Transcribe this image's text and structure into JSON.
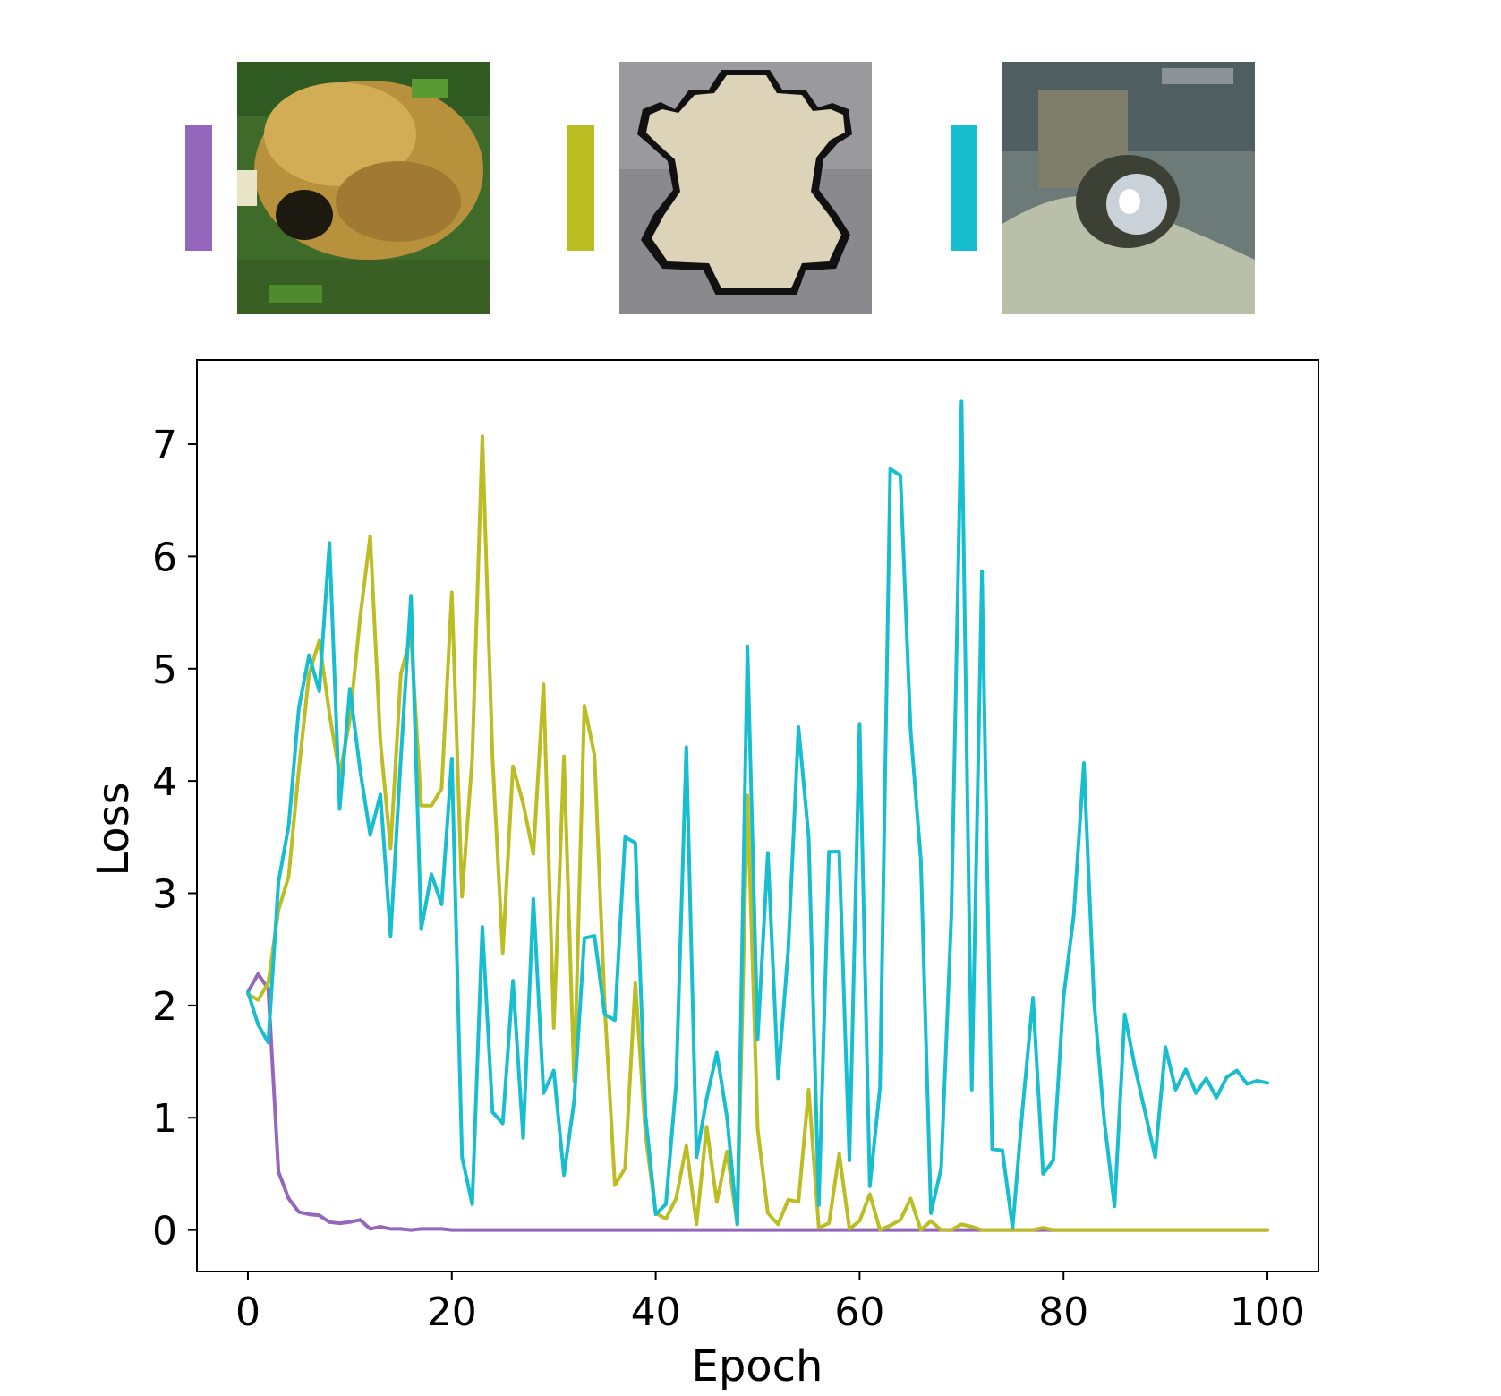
{
  "chart_data": {
    "type": "line",
    "xlabel": "Epoch",
    "ylabel": "Loss",
    "xlim": [
      -5,
      105
    ],
    "ylim": [
      -0.37,
      7.75
    ],
    "xticks": [
      0,
      20,
      40,
      60,
      80,
      100
    ],
    "yticks": [
      0,
      1,
      2,
      3,
      4,
      5,
      6,
      7
    ],
    "grid": false,
    "legend": "none",
    "thumbnails": [
      {
        "color": "#9467bd",
        "image": "frog-on-grass-thumbnail"
      },
      {
        "color": "#bcbd22",
        "image": "frog-silhouette-thumbnail"
      },
      {
        "color": "#17becf",
        "image": "frog-in-container-thumbnail"
      }
    ],
    "series": [
      {
        "color": "#9467bd",
        "x": [
          0,
          1,
          2,
          3,
          4,
          5,
          6,
          7,
          8,
          9,
          10,
          11,
          12,
          13,
          14,
          15,
          16,
          17,
          18,
          19,
          20,
          25,
          30,
          40,
          50,
          60,
          70,
          80,
          90,
          100
        ],
        "y": [
          2.12,
          2.28,
          2.15,
          0.52,
          0.28,
          0.16,
          0.14,
          0.13,
          0.07,
          0.06,
          0.07,
          0.09,
          0.01,
          0.03,
          0.01,
          0.01,
          0.0,
          0.01,
          0.01,
          0.01,
          0.0,
          0.0,
          0.0,
          0.0,
          0.0,
          0.0,
          0.0,
          0.0,
          0.0,
          0.0
        ]
      },
      {
        "color": "#bcbd22",
        "x": [
          0,
          1,
          2,
          3,
          4,
          5,
          6,
          7,
          8,
          9,
          10,
          11,
          12,
          13,
          14,
          15,
          16,
          17,
          18,
          19,
          20,
          21,
          22,
          23,
          24,
          25,
          26,
          27,
          28,
          29,
          30,
          31,
          32,
          33,
          34,
          35,
          36,
          37,
          38,
          39,
          40,
          41,
          42,
          43,
          44,
          45,
          46,
          47,
          48,
          49,
          50,
          51,
          52,
          53,
          54,
          55,
          56,
          57,
          58,
          59,
          60,
          61,
          62,
          63,
          64,
          65,
          66,
          67,
          68,
          69,
          70,
          71,
          72,
          73,
          74,
          75,
          76,
          77,
          78,
          79,
          80,
          85,
          90,
          95,
          100
        ],
        "y": [
          2.1,
          2.05,
          2.2,
          2.85,
          3.15,
          4.1,
          4.95,
          5.25,
          4.6,
          4.05,
          4.55,
          5.45,
          6.18,
          4.35,
          3.4,
          4.95,
          5.3,
          3.78,
          3.78,
          3.93,
          5.68,
          2.97,
          4.2,
          7.07,
          4.2,
          2.47,
          4.13,
          3.8,
          3.35,
          4.86,
          1.8,
          4.22,
          1.32,
          4.67,
          4.23,
          2.0,
          0.4,
          0.55,
          2.2,
          0.85,
          0.15,
          0.1,
          0.28,
          0.75,
          0.05,
          0.92,
          0.25,
          0.7,
          0.05,
          3.87,
          0.9,
          0.15,
          0.05,
          0.27,
          0.25,
          1.25,
          0.02,
          0.06,
          0.68,
          0.01,
          0.08,
          0.32,
          0.0,
          0.04,
          0.09,
          0.28,
          0.0,
          0.08,
          0.0,
          0.0,
          0.05,
          0.03,
          0.0,
          0.0,
          0.0,
          0.0,
          0.0,
          0.0,
          0.02,
          0.0,
          0.0,
          0.0,
          0.0,
          0.0,
          0.0
        ]
      },
      {
        "color": "#17becf",
        "x": [
          0,
          1,
          2,
          3,
          4,
          5,
          6,
          7,
          8,
          9,
          10,
          11,
          12,
          13,
          14,
          15,
          16,
          17,
          18,
          19,
          20,
          21,
          22,
          23,
          24,
          25,
          26,
          27,
          28,
          29,
          30,
          31,
          32,
          33,
          34,
          35,
          36,
          37,
          38,
          39,
          40,
          41,
          42,
          43,
          44,
          45,
          46,
          47,
          48,
          49,
          50,
          51,
          52,
          53,
          54,
          55,
          56,
          57,
          58,
          59,
          60,
          61,
          62,
          63,
          64,
          65,
          66,
          67,
          68,
          69,
          70,
          71,
          72,
          73,
          74,
          75,
          76,
          77,
          78,
          79,
          80,
          81,
          82,
          83,
          84,
          85,
          86,
          87,
          88,
          89,
          90,
          91,
          92,
          93,
          94,
          95,
          96,
          97,
          98,
          99,
          100
        ],
        "y": [
          2.12,
          1.83,
          1.67,
          3.1,
          3.6,
          4.65,
          5.12,
          4.8,
          6.12,
          3.75,
          4.82,
          4.1,
          3.52,
          3.88,
          2.62,
          4.2,
          5.65,
          2.68,
          3.17,
          2.9,
          4.2,
          0.65,
          0.23,
          2.7,
          1.05,
          0.95,
          2.22,
          0.82,
          2.95,
          1.22,
          1.42,
          0.49,
          1.15,
          2.6,
          2.62,
          1.92,
          1.87,
          3.5,
          3.45,
          1.02,
          0.14,
          0.23,
          1.3,
          4.3,
          0.65,
          1.17,
          1.58,
          1.0,
          0.05,
          5.2,
          1.7,
          3.36,
          1.35,
          2.5,
          4.48,
          3.5,
          0.22,
          3.37,
          3.37,
          0.62,
          4.51,
          0.39,
          1.27,
          6.78,
          6.72,
          4.45,
          3.3,
          0.15,
          0.55,
          2.8,
          7.38,
          1.25,
          5.87,
          0.72,
          0.71,
          0.02,
          1.1,
          2.07,
          0.5,
          0.62,
          2.07,
          2.8,
          4.16,
          2.03,
          0.97,
          0.21,
          1.92,
          1.45,
          1.05,
          0.65,
          1.63,
          1.25,
          1.43,
          1.22,
          1.35,
          1.18,
          1.36,
          1.42,
          1.3,
          1.33,
          1.31
        ]
      }
    ]
  }
}
